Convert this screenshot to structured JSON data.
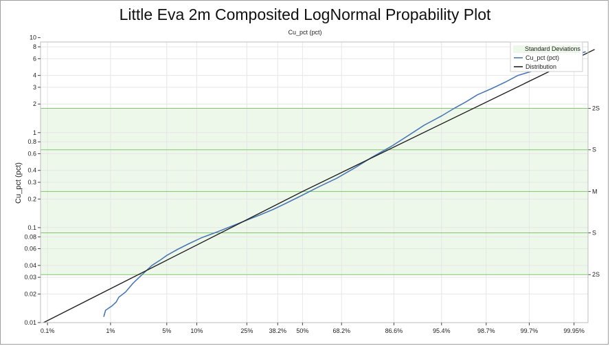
{
  "chart_data": {
    "type": "line",
    "title": "Little Eva 2m Composited LogNormal Propability Plot",
    "subtitle": "Cu_pct (pct)",
    "xlabel": "",
    "ylabel": "Cu_pct (pct)",
    "x_scale": "probability",
    "y_scale": "log",
    "ylim": [
      0.01,
      9
    ],
    "x_ticks": [
      {
        "p": 0.1,
        "label": "0.1%"
      },
      {
        "p": 1,
        "label": "1%"
      },
      {
        "p": 5,
        "label": "5%"
      },
      {
        "p": 10,
        "label": "10%"
      },
      {
        "p": 25,
        "label": "25%"
      },
      {
        "p": 38.2,
        "label": "38.2%"
      },
      {
        "p": 50,
        "label": "50%"
      },
      {
        "p": 68.2,
        "label": "68.2%"
      },
      {
        "p": 86.6,
        "label": "86.6%"
      },
      {
        "p": 95.4,
        "label": "95.4%"
      },
      {
        "p": 98.7,
        "label": "98.7%"
      },
      {
        "p": 99.7,
        "label": "99.7%"
      },
      {
        "p": 99.95,
        "label": "99.95%"
      }
    ],
    "y_ticks": [
      {
        "v": 0.01,
        "label": "0.01"
      },
      {
        "v": 0.02,
        "label": "0.02"
      },
      {
        "v": 0.03,
        "label": "0.03"
      },
      {
        "v": 0.04,
        "label": "0.04"
      },
      {
        "v": 0.06,
        "label": "0.06"
      },
      {
        "v": 0.08,
        "label": "0.08"
      },
      {
        "v": 0.1,
        "label": "0.1"
      },
      {
        "v": 0.2,
        "label": "0.2"
      },
      {
        "v": 0.3,
        "label": "0.3"
      },
      {
        "v": 0.4,
        "label": "0.4"
      },
      {
        "v": 0.6,
        "label": "0.6"
      },
      {
        "v": 0.8,
        "label": "0.8"
      },
      {
        "v": 1,
        "label": "1"
      },
      {
        "v": 2,
        "label": "2"
      },
      {
        "v": 3,
        "label": "3"
      },
      {
        "v": 4,
        "label": "4"
      },
      {
        "v": 6,
        "label": "6"
      },
      {
        "v": 8,
        "label": "8"
      },
      {
        "v": 10,
        "label": "10"
      }
    ],
    "std_dev_lines": [
      {
        "label": "2S",
        "value": 1.8
      },
      {
        "label": "S",
        "value": 0.66
      },
      {
        "label": "M",
        "value": 0.24
      },
      {
        "label": "S",
        "value": 0.088
      },
      {
        "label": "2S",
        "value": 0.032
      }
    ],
    "series": [
      {
        "name": "Cu_pct (pct)",
        "color": "#4a78b5",
        "points": [
          [
            0.8,
            0.0115
          ],
          [
            0.85,
            0.0135
          ],
          [
            1.05,
            0.015
          ],
          [
            1.2,
            0.0165
          ],
          [
            1.3,
            0.0185
          ],
          [
            1.6,
            0.021
          ],
          [
            2.0,
            0.026
          ],
          [
            2.6,
            0.032
          ],
          [
            3.4,
            0.04
          ],
          [
            4.3,
            0.046
          ],
          [
            5.0,
            0.051
          ],
          [
            6.5,
            0.059
          ],
          [
            8.5,
            0.068
          ],
          [
            11,
            0.078
          ],
          [
            15,
            0.09
          ],
          [
            20,
            0.105
          ],
          [
            25,
            0.12
          ],
          [
            30,
            0.135
          ],
          [
            36,
            0.155
          ],
          [
            42,
            0.18
          ],
          [
            50,
            0.22
          ],
          [
            58,
            0.27
          ],
          [
            66,
            0.33
          ],
          [
            74,
            0.43
          ],
          [
            80,
            0.55
          ],
          [
            86,
            0.72
          ],
          [
            90,
            0.93
          ],
          [
            93,
            1.2
          ],
          [
            95.4,
            1.5
          ],
          [
            96.7,
            1.8
          ],
          [
            97.6,
            2.1
          ],
          [
            98.3,
            2.5
          ],
          [
            98.9,
            2.9
          ],
          [
            99.3,
            3.4
          ],
          [
            99.55,
            4.0
          ],
          [
            99.75,
            4.5
          ],
          [
            99.85,
            5.0
          ],
          [
            99.9,
            5.5
          ],
          [
            99.94,
            6.3
          ],
          [
            99.97,
            7.1
          ]
        ]
      },
      {
        "name": "Distribution",
        "color": "#222222",
        "points": [
          [
            0.085,
            0.01
          ],
          [
            50,
            0.24
          ],
          [
            99.98,
            7.5
          ]
        ]
      }
    ],
    "legend": {
      "position": "top-right",
      "items": [
        "Standard Deviations",
        "Cu_pct (pct)",
        "Distribution"
      ]
    },
    "colors": {
      "band_fill": "#eef8ea",
      "std_line": "#7ec76a",
      "grid": "#e6e6e6"
    },
    "grid": true
  }
}
